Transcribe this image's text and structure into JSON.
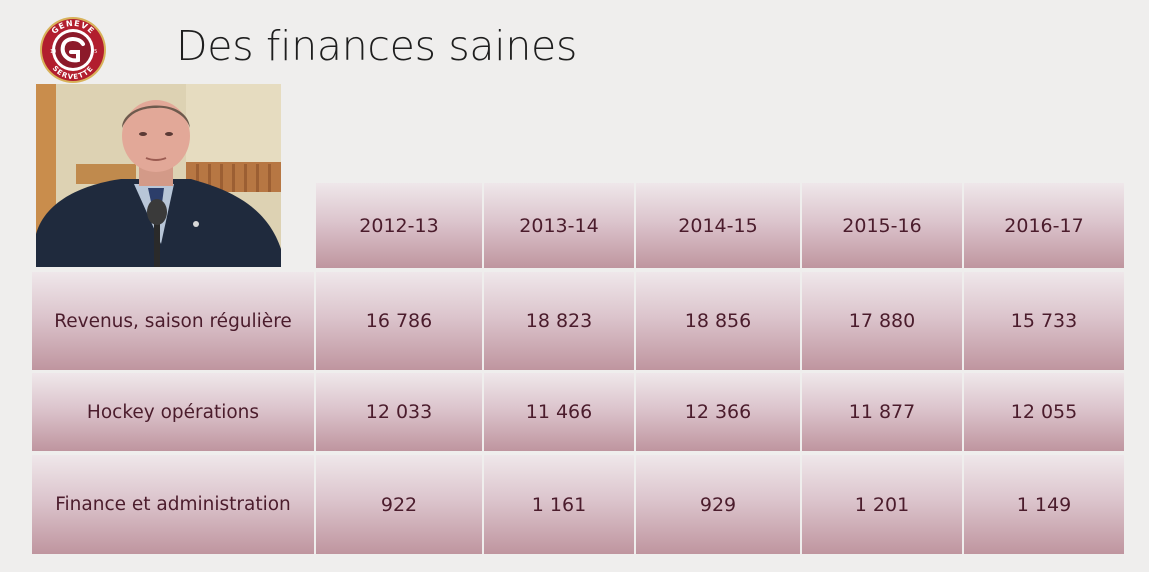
{
  "slide": {
    "title": "Des finances saines"
  },
  "logo": {
    "top_text": "GENEVE",
    "bottom_text": "SERVETTE",
    "year_left": "19",
    "year_right": "05",
    "colors": {
      "ring": "#b21e2e",
      "inner": "#8c1a2a",
      "gold": "#d8b25a"
    }
  },
  "table": {
    "years": [
      "2012-13",
      "2013-14",
      "2014-15",
      "2015-16",
      "2016-17"
    ],
    "rows": [
      {
        "label": "Revenus, saison régulière",
        "values": [
          "16 786",
          "18 823",
          "18 856",
          "17 880",
          "15 733"
        ]
      },
      {
        "label": "Hockey opérations",
        "values": [
          "12 033",
          "11 466",
          "12 366",
          "11 877",
          "12 055"
        ]
      },
      {
        "label": "Finance et administration",
        "values": [
          "922",
          "1 161",
          "929",
          "1 201",
          "1 149"
        ]
      }
    ],
    "colors": {
      "text": "#4b1c2c",
      "cell_top": "#efe7ea",
      "cell_bottom": "#bf959f"
    }
  }
}
